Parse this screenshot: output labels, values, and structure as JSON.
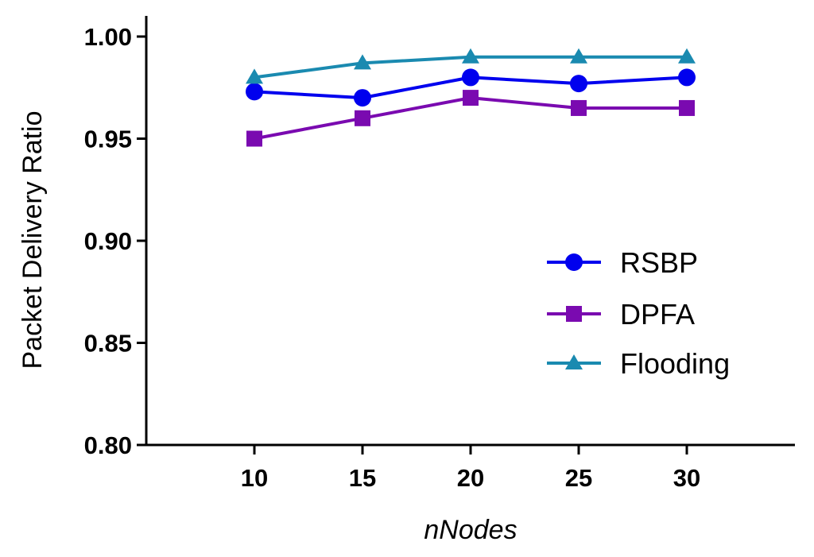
{
  "chart_data": {
    "type": "line",
    "title": "",
    "xlabel": "nNodes",
    "ylabel": "Packet Delivery Ratio",
    "x": [
      10,
      15,
      20,
      25,
      30
    ],
    "xlim": [
      5,
      35
    ],
    "ylim": [
      0.8,
      1.0
    ],
    "yticks": [
      "0.80",
      "0.85",
      "0.90",
      "0.95",
      "1.00"
    ],
    "xticks": [
      "10",
      "15",
      "20",
      "25",
      "30"
    ],
    "grid": false,
    "legend": "right",
    "series": [
      {
        "name": "RSBP",
        "values": [
          0.973,
          0.97,
          0.98,
          0.977,
          0.98
        ],
        "color": "#0000ee",
        "marker": "circle"
      },
      {
        "name": "DPFA",
        "values": [
          0.95,
          0.96,
          0.97,
          0.965,
          0.965
        ],
        "color": "#7a0ab0",
        "marker": "square"
      },
      {
        "name": "Flooding",
        "values": [
          0.98,
          0.987,
          0.99,
          0.99,
          0.99
        ],
        "color": "#1a8ab0",
        "marker": "triangle"
      }
    ]
  }
}
